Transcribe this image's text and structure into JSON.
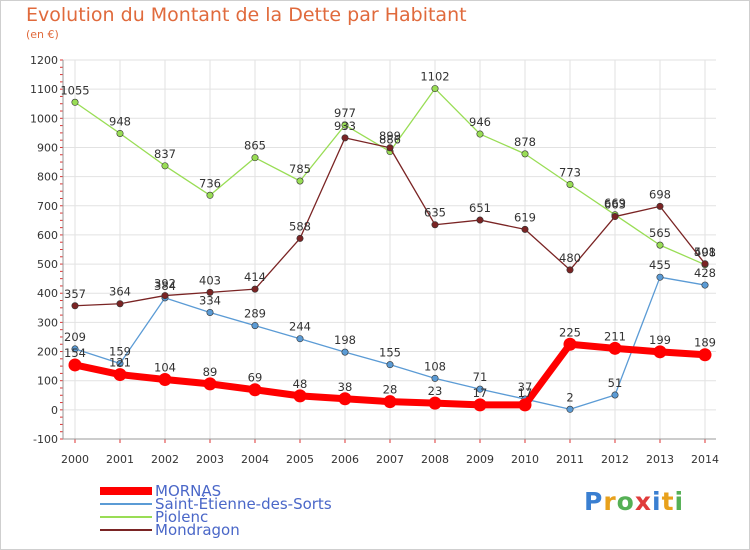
{
  "chart_data": {
    "type": "line",
    "title": "Evolution du Montant de la Dette par Habitant",
    "subtitle": "(en €)",
    "xlabel": "",
    "ylabel": "",
    "x": [
      "2000",
      "2001",
      "2002",
      "2003",
      "2004",
      "2005",
      "2006",
      "2007",
      "2008",
      "2009",
      "2010",
      "2011",
      "2012",
      "2013",
      "2014"
    ],
    "ylim": [
      -100,
      1200
    ],
    "yticks": [
      -100,
      0,
      100,
      200,
      300,
      400,
      500,
      600,
      700,
      800,
      900,
      1000,
      1100,
      1200
    ],
    "grid": true,
    "legend_position": "bottom-left",
    "series": [
      {
        "name": "MORNAS",
        "color": "#ff0000",
        "emphasis": true,
        "values": [
          154,
          121,
          104,
          89,
          69,
          48,
          38,
          28,
          23,
          17,
          17,
          225,
          211,
          199,
          189
        ]
      },
      {
        "name": "Saint-Étienne-des-Sorts",
        "color": "#5b9bd5",
        "values": [
          209,
          159,
          384,
          334,
          289,
          244,
          198,
          155,
          108,
          71,
          37,
          2,
          51,
          455,
          428
        ]
      },
      {
        "name": "Piolenc",
        "color": "#99dd55",
        "values": [
          1055,
          948,
          837,
          736,
          865,
          785,
          977,
          886,
          1102,
          946,
          878,
          773,
          669,
          565,
          498
        ]
      },
      {
        "name": "Mondragon",
        "color": "#7a2424",
        "values": [
          357,
          364,
          392,
          403,
          414,
          588,
          933,
          899,
          635,
          651,
          619,
          480,
          663,
          698,
          501
        ]
      }
    ]
  },
  "logo": {
    "text": "Proxiti",
    "letters": [
      {
        "ch": "P",
        "color": "#3a7fd1"
      },
      {
        "ch": "r",
        "color": "#e8a11c"
      },
      {
        "ch": "o",
        "color": "#55b055"
      },
      {
        "ch": "x",
        "color": "#e03b3b"
      },
      {
        "ch": "i",
        "color": "#3a7fd1"
      },
      {
        "ch": "t",
        "color": "#e8a11c"
      },
      {
        "ch": "i",
        "color": "#55b055"
      }
    ]
  }
}
